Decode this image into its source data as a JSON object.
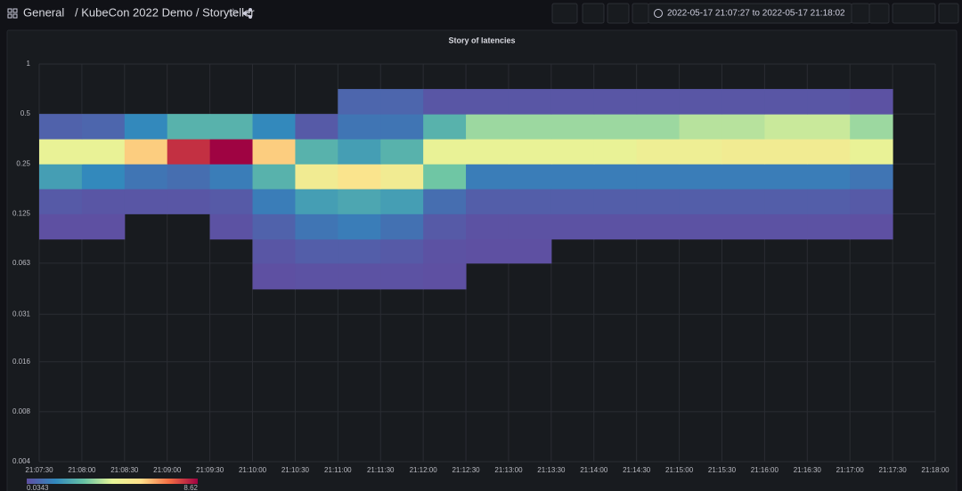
{
  "header": {
    "root": "General",
    "path": "/ KubeCon 2022 Demo / Storyteller",
    "time_range": "2022-05-17 21:07:27 to 2022-05-17 21:18:02"
  },
  "chart_data": {
    "type": "heatmap",
    "title": "Story of latencies",
    "xbins": [
      "21:07:30",
      "21:08:00",
      "21:08:30",
      "21:09:00",
      "21:09:30",
      "21:10:00",
      "21:10:30",
      "21:11:00",
      "21:11:30",
      "21:12:00",
      "21:12:30",
      "21:13:00",
      "21:13:30",
      "21:14:00",
      "21:14:30",
      "21:15:00",
      "21:15:30",
      "21:16:00",
      "21:16:30",
      "21:17:00",
      "21:17:30",
      "21:18:00"
    ],
    "ybins": [
      0.044,
      0.063,
      0.088,
      0.125,
      0.177,
      0.25,
      0.354,
      0.5,
      0.707
    ],
    "values": [
      [
        0,
        0,
        0,
        0,
        0,
        0.05,
        0.1,
        0.1,
        0.1,
        0.05,
        0,
        0,
        0,
        0,
        0,
        0,
        0,
        0,
        0,
        0,
        0
      ],
      [
        0,
        0,
        0,
        0,
        0,
        0.2,
        0.4,
        0.4,
        0.3,
        0.1,
        0.05,
        0.05,
        0,
        0,
        0,
        0,
        0,
        0,
        0,
        0,
        0
      ],
      [
        0.05,
        0.05,
        0,
        0,
        0.1,
        0.5,
        1,
        1.2,
        0.9,
        0.3,
        0.1,
        0.1,
        0.1,
        0.1,
        0.1,
        0.1,
        0.1,
        0.1,
        0.1,
        0.05,
        0
      ],
      [
        0.3,
        0.2,
        0.2,
        0.2,
        0.3,
        1.2,
        2,
        2.2,
        2,
        0.8,
        0.4,
        0.4,
        0.4,
        0.4,
        0.4,
        0.4,
        0.4,
        0.4,
        0.4,
        0.3,
        0
      ],
      [
        2,
        1.5,
        1,
        0.8,
        1.2,
        2.5,
        5,
        5.5,
        5,
        3,
        1.2,
        1.2,
        1.2,
        1.2,
        1.2,
        1.2,
        1.2,
        1.2,
        1.2,
        1,
        0
      ],
      [
        4.5,
        4.5,
        6,
        8,
        8.6,
        6,
        2.5,
        2,
        2.5,
        4.5,
        4.5,
        4.5,
        4.5,
        4.5,
        4.8,
        4.8,
        5,
        5,
        5,
        4.5,
        0
      ],
      [
        0.5,
        0.6,
        1.5,
        2.5,
        2.5,
        1.5,
        0.3,
        1,
        1,
        2.5,
        3.5,
        3.5,
        3.5,
        3.5,
        3.5,
        3.8,
        3.8,
        4,
        4,
        3.5,
        0
      ],
      [
        0,
        0,
        0,
        0,
        0,
        0,
        0,
        0.6,
        0.6,
        0.2,
        0.2,
        0.2,
        0.2,
        0.2,
        0.2,
        0.2,
        0.2,
        0.2,
        0.2,
        0.1,
        0
      ]
    ],
    "ylim": [
      0.004,
      1
    ],
    "yticks": [
      1,
      0.5,
      0.25,
      0.125,
      0.063,
      0.031,
      0.016,
      0.008,
      0.004
    ],
    "log_scale": "y",
    "grid": true,
    "hide_zero": true,
    "colors": [
      "#5e4fa2",
      "#3288bd",
      "#66c2a5",
      "#e6f598",
      "#fee08b",
      "#f46d43",
      "#9e0142"
    ],
    "color_min": 0.0343,
    "color_max": 8.62
  }
}
